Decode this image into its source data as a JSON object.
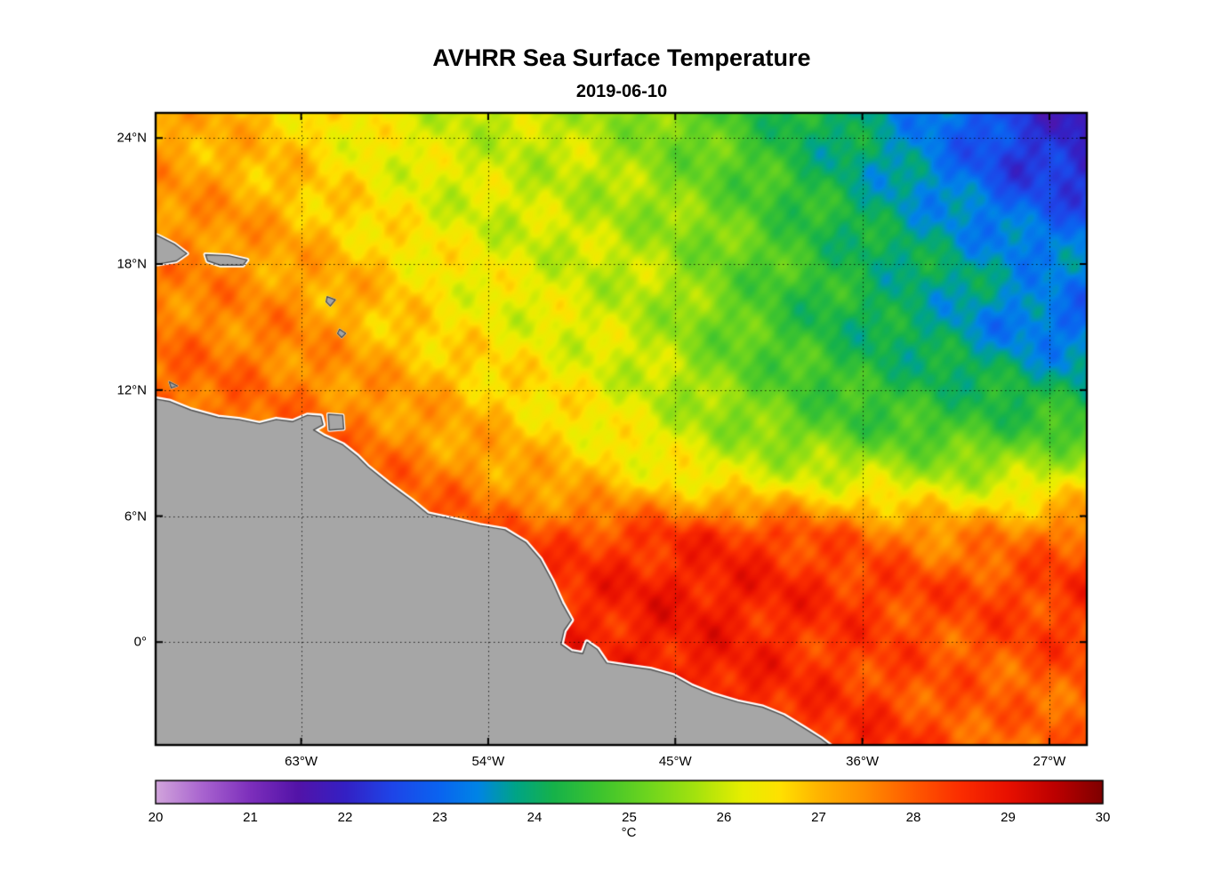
{
  "chart_data": {
    "type": "heatmap",
    "title": "AVHRR Sea Surface Temperature",
    "subtitle": "2019-06-10",
    "colorbar_label": "°C",
    "clim": [
      20,
      30
    ],
    "colorbar_ticks": [
      20,
      21,
      22,
      23,
      24,
      25,
      26,
      27,
      28,
      29,
      30
    ],
    "grid": true,
    "legend_position": "bottom-colorbar",
    "lon_range": [
      -70.0,
      -25.2
    ],
    "lat_range": [
      -4.9,
      25.2
    ],
    "x_ticks": [
      {
        "lon": -63,
        "label": "63°W"
      },
      {
        "lon": -54,
        "label": "54°W"
      },
      {
        "lon": -45,
        "label": "45°W"
      },
      {
        "lon": -36,
        "label": "36°W"
      },
      {
        "lon": -27,
        "label": "27°W"
      }
    ],
    "y_ticks": [
      {
        "lat": 24,
        "label": "24°N"
      },
      {
        "lat": 18,
        "label": "18°N"
      },
      {
        "lat": 12,
        "label": "12°N"
      },
      {
        "lat": 6,
        "label": "6°N"
      },
      {
        "lat": 0,
        "label": "0°"
      }
    ],
    "colormap": [
      [
        0.0,
        "#d2a5dc"
      ],
      [
        0.05,
        "#a863cf"
      ],
      [
        0.1,
        "#7d2fbc"
      ],
      [
        0.15,
        "#5313a8"
      ],
      [
        0.2,
        "#3420c4"
      ],
      [
        0.25,
        "#1e45e8"
      ],
      [
        0.3,
        "#0a64f0"
      ],
      [
        0.34,
        "#0084e6"
      ],
      [
        0.38,
        "#00a487"
      ],
      [
        0.42,
        "#16b24a"
      ],
      [
        0.47,
        "#3ec42e"
      ],
      [
        0.52,
        "#6ed51e"
      ],
      [
        0.57,
        "#a4e20e"
      ],
      [
        0.62,
        "#e8ee00"
      ],
      [
        0.66,
        "#ffe000"
      ],
      [
        0.7,
        "#ffb400"
      ],
      [
        0.75,
        "#ff8c00"
      ],
      [
        0.8,
        "#ff5a00"
      ],
      [
        0.85,
        "#fb2d00"
      ],
      [
        0.9,
        "#e81000"
      ],
      [
        0.95,
        "#bc0000"
      ],
      [
        1.0,
        "#7e0000"
      ]
    ],
    "sst_grid": {
      "units": "degC",
      "note": "SST estimated on a uniform grid spanning lon_range (cols, west to east) and lat_range (rows, north to south)",
      "values": [
        [
          27.2,
          27.0,
          26.7,
          26.3,
          26.0,
          25.9,
          25.8,
          25.3,
          24.8,
          24.2,
          23.8,
          23.2,
          22.3,
          21.9
        ],
        [
          27.3,
          27.1,
          26.8,
          26.4,
          26.1,
          26.0,
          25.9,
          25.5,
          25.0,
          24.3,
          23.8,
          23.2,
          22.4,
          22.0
        ],
        [
          27.5,
          27.4,
          27.0,
          26.6,
          26.2,
          26.0,
          25.9,
          25.6,
          25.2,
          24.6,
          24.0,
          23.6,
          23.1,
          22.8
        ],
        [
          27.6,
          27.5,
          27.2,
          26.9,
          26.5,
          26.2,
          26.0,
          25.8,
          25.2,
          24.6,
          24.2,
          23.9,
          23.6,
          23.4
        ],
        [
          27.7,
          27.6,
          27.5,
          27.0,
          26.5,
          26.3,
          26.1,
          25.8,
          25.1,
          24.5,
          24.1,
          23.8,
          23.2,
          22.9
        ],
        [
          27.9,
          27.8,
          27.6,
          27.3,
          27.0,
          26.6,
          26.3,
          25.9,
          25.3,
          24.8,
          24.4,
          24.2,
          24.0,
          23.8
        ],
        [
          28.0,
          27.9,
          27.8,
          27.6,
          27.2,
          26.9,
          26.5,
          26.1,
          25.6,
          25.1,
          24.8,
          24.7,
          24.7,
          24.8
        ],
        [
          28.1,
          28.0,
          28.0,
          28.0,
          27.7,
          27.3,
          27.0,
          26.6,
          26.3,
          26.2,
          26.1,
          25.9,
          26.0,
          26.3
        ],
        [
          28.3,
          28.3,
          28.2,
          28.2,
          28.2,
          28.0,
          28.2,
          28.4,
          28.5,
          28.2,
          27.8,
          27.5,
          27.6,
          28.0
        ],
        [
          28.5,
          28.5,
          28.5,
          28.5,
          28.5,
          28.5,
          28.6,
          28.8,
          28.8,
          28.6,
          28.4,
          28.2,
          28.3,
          28.5
        ],
        [
          28.6,
          28.6,
          28.6,
          28.6,
          28.6,
          28.6,
          28.6,
          28.8,
          28.7,
          28.5,
          28.3,
          28.1,
          28.2,
          28.3
        ],
        [
          28.6,
          28.6,
          28.6,
          28.6,
          28.6,
          28.6,
          28.6,
          28.7,
          28.8,
          28.5,
          28.3,
          28.0,
          27.9,
          28.0
        ],
        [
          28.6,
          28.6,
          28.6,
          28.6,
          28.6,
          28.6,
          28.6,
          28.7,
          28.8,
          28.6,
          28.6,
          28.2,
          27.8,
          27.9
        ]
      ]
    },
    "land": {
      "fill": "#a6a6a6",
      "edge": "#4f4f4f",
      "halo_color": "#ffffff",
      "polygons": [
        {
          "name": "south-america",
          "halo": 6,
          "points": [
            [
              -71.0,
              11.75
            ],
            [
              -69.3,
              11.45
            ],
            [
              -68.3,
              11.05
            ],
            [
              -67.0,
              10.7
            ],
            [
              -66.0,
              10.6
            ],
            [
              -65.0,
              10.4
            ],
            [
              -64.2,
              10.6
            ],
            [
              -63.4,
              10.5
            ],
            [
              -62.7,
              10.8
            ],
            [
              -62.05,
              10.75
            ],
            [
              -61.95,
              10.35
            ],
            [
              -62.4,
              10.1
            ],
            [
              -61.9,
              9.8
            ],
            [
              -61.0,
              9.4
            ],
            [
              -60.3,
              8.85
            ],
            [
              -59.8,
              8.35
            ],
            [
              -58.8,
              7.55
            ],
            [
              -57.7,
              6.75
            ],
            [
              -56.9,
              6.1
            ],
            [
              -55.7,
              5.85
            ],
            [
              -54.4,
              5.55
            ],
            [
              -53.2,
              5.35
            ],
            [
              -52.2,
              4.75
            ],
            [
              -51.5,
              3.95
            ],
            [
              -50.95,
              2.95
            ],
            [
              -50.45,
              1.85
            ],
            [
              -50.0,
              1.05
            ],
            [
              -50.35,
              0.55
            ],
            [
              -50.5,
              -0.1
            ],
            [
              -50.0,
              -0.45
            ],
            [
              -49.45,
              -0.55
            ],
            [
              -49.25,
              0.0
            ],
            [
              -48.75,
              -0.35
            ],
            [
              -48.3,
              -1.0
            ],
            [
              -47.3,
              -1.15
            ],
            [
              -46.2,
              -1.3
            ],
            [
              -45.1,
              -1.6
            ],
            [
              -44.2,
              -2.1
            ],
            [
              -43.2,
              -2.5
            ],
            [
              -42.0,
              -2.85
            ],
            [
              -40.8,
              -3.1
            ],
            [
              -39.8,
              -3.5
            ],
            [
              -38.8,
              -4.1
            ],
            [
              -38.0,
              -4.6
            ],
            [
              -37.2,
              -5.2
            ],
            [
              -36.8,
              -6.0
            ],
            [
              -71.0,
              -6.0
            ]
          ]
        },
        {
          "name": "hispaniola-east",
          "halo": 5,
          "points": [
            [
              -71.0,
              19.6
            ],
            [
              -69.9,
              19.35
            ],
            [
              -69.1,
              18.95
            ],
            [
              -68.5,
              18.5
            ],
            [
              -69.0,
              18.15
            ],
            [
              -69.9,
              18.0
            ],
            [
              -71.0,
              18.05
            ]
          ]
        },
        {
          "name": "puerto-rico",
          "halo": 5,
          "points": [
            [
              -67.6,
              18.45
            ],
            [
              -66.5,
              18.4
            ],
            [
              -65.6,
              18.2
            ],
            [
              -65.8,
              17.95
            ],
            [
              -66.9,
              17.95
            ],
            [
              -67.5,
              18.15
            ]
          ]
        },
        {
          "name": "trinidad",
          "halo": 4,
          "points": [
            [
              -61.7,
              10.85
            ],
            [
              -61.0,
              10.8
            ],
            [
              -60.95,
              10.15
            ],
            [
              -61.65,
              10.1
            ]
          ]
        },
        {
          "name": "guadeloupe",
          "halo": 2,
          "points": [
            [
              -61.75,
              16.45
            ],
            [
              -61.35,
              16.3
            ],
            [
              -61.6,
              16.0
            ],
            [
              -61.8,
              16.2
            ]
          ]
        },
        {
          "name": "martinique",
          "halo": 2,
          "points": [
            [
              -61.15,
              14.9
            ],
            [
              -60.85,
              14.7
            ],
            [
              -61.05,
              14.5
            ],
            [
              -61.25,
              14.7
            ]
          ]
        },
        {
          "name": "curacao",
          "halo": 2,
          "points": [
            [
              -69.35,
              12.4
            ],
            [
              -68.95,
              12.2
            ],
            [
              -69.25,
              12.1
            ]
          ]
        }
      ]
    }
  }
}
